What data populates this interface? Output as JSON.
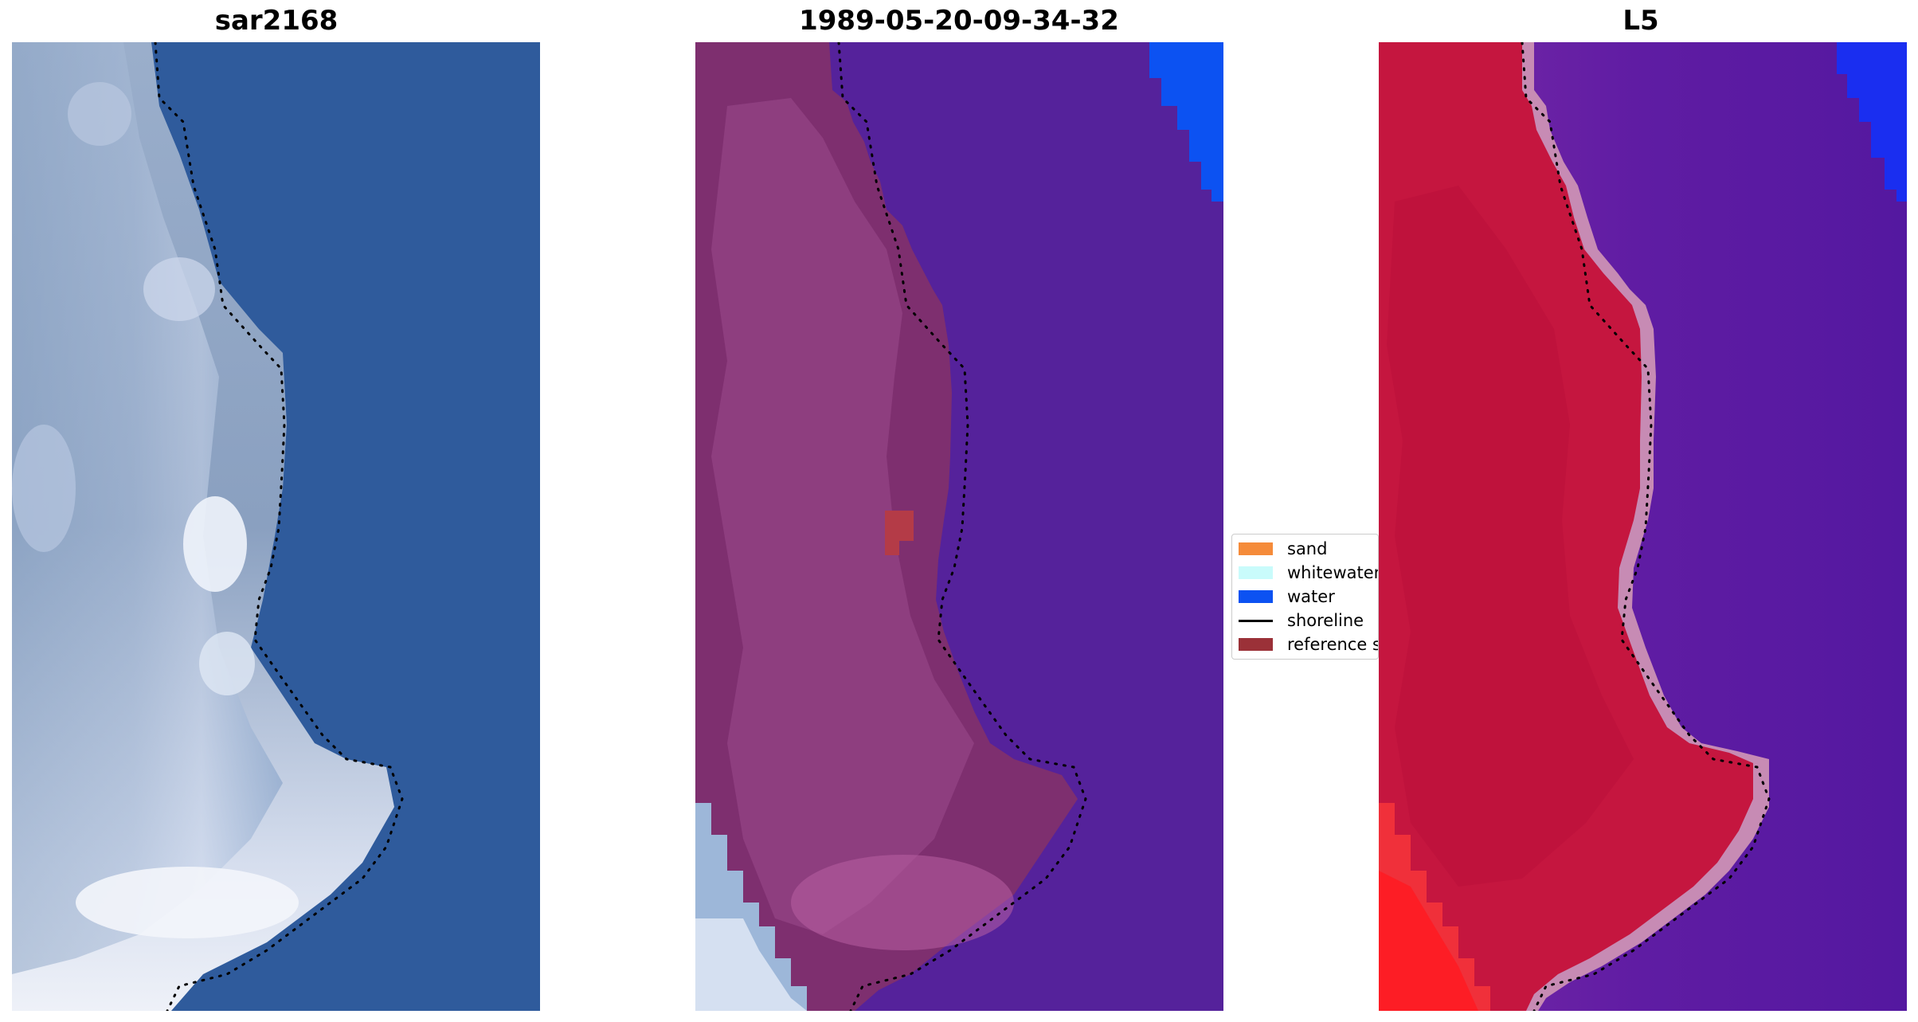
{
  "panels": [
    {
      "id": "rgb",
      "title": "sar2168"
    },
    {
      "id": "classified",
      "title": "1989-05-20-09-34-32"
    },
    {
      "id": "index",
      "title": "L5"
    }
  ],
  "legend": {
    "items": [
      {
        "label": "sand",
        "color": "#f58b3a",
        "kind": "patch"
      },
      {
        "label": "whitewater",
        "color": "#c9fbfb",
        "kind": "patch"
      },
      {
        "label": "water",
        "color": "#0c52f2",
        "kind": "patch"
      },
      {
        "label": "shoreline",
        "color": "#000000",
        "kind": "line"
      },
      {
        "label": "reference s",
        "color": "#9b3138",
        "kind": "patch"
      }
    ]
  },
  "colors": {
    "sea_rgb": "#2f5b9c",
    "land_rgb_dark": "#6f8fb8",
    "land_rgb_light": "#dfe7f4",
    "overlay_land": "#7e2f6f",
    "overlay_water": "#55229b",
    "index_land": "#c5163f",
    "index_water": "#5c18a2",
    "index_border": "#c78bb4",
    "water_blue": "#0c52f2",
    "reference_patch": "#b43b47",
    "shoreline": "#000000"
  }
}
